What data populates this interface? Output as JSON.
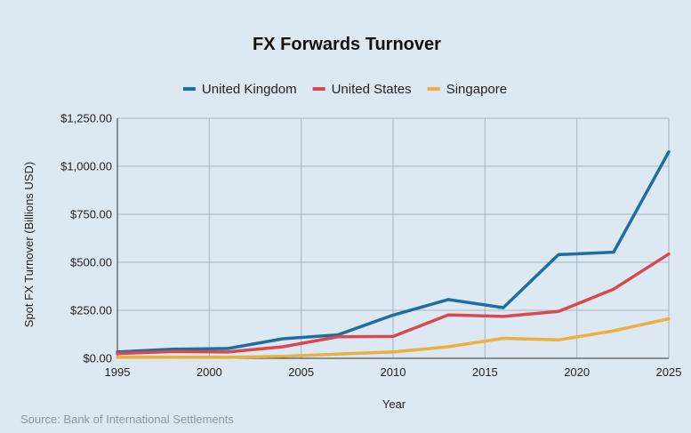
{
  "chart_data": {
    "type": "line",
    "title": "FX Forwards Turnover",
    "xlabel": "Year",
    "ylabel": "Spot FX Turnover (Billions USD)",
    "xlim": [
      1995,
      2025
    ],
    "ylim": [
      0,
      1250
    ],
    "x_ticks": [
      1995,
      2000,
      2005,
      2010,
      2015,
      2020,
      2025
    ],
    "x_tick_labels": [
      "1995",
      "2000",
      "2005",
      "2010",
      "2015",
      "2020",
      "2025"
    ],
    "y_ticks": [
      0,
      250,
      500,
      750,
      1000,
      1250
    ],
    "y_tick_labels": [
      "$0.00",
      "$250.00",
      "$500.00",
      "$750.00",
      "$1,000.00",
      "$1,250.00"
    ],
    "grid": true,
    "legend_position": "top-center",
    "x": [
      1995,
      1998,
      2001,
      2004,
      2007,
      2010,
      2013,
      2016,
      2019,
      2022,
      2025
    ],
    "series": [
      {
        "name": "United Kingdom",
        "color": "#1f6e9f",
        "values": [
          33,
          47,
          51,
          102,
          122,
          225,
          306,
          264,
          540,
          553,
          1075
        ]
      },
      {
        "name": "United States",
        "color": "#d9484f",
        "values": [
          25,
          35,
          33,
          60,
          112,
          114,
          226,
          218,
          244,
          360,
          543
        ]
      },
      {
        "name": "Singapore",
        "color": "#eab040",
        "values": [
          5,
          6,
          5,
          10,
          22,
          33,
          60,
          104,
          96,
          143,
          206
        ]
      }
    ]
  },
  "footer": {
    "source": "Source: Bank of International Settlements"
  }
}
